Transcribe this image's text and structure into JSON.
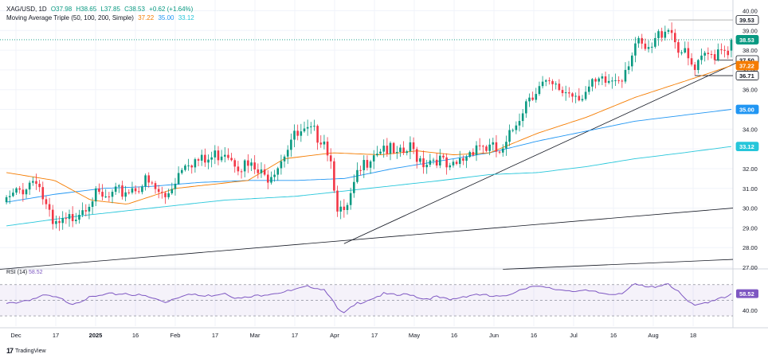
{
  "header": {
    "symbol": "XAG/USD, 1D",
    "open": "O37.98",
    "high": "H38.65",
    "low": "L37.85",
    "close": "C38.53",
    "change": "+0.62 (+1.64%)",
    "ma_label": "Moving Average Triple (50, 100, 200, Simple)",
    "ma50": "37.22",
    "ma100": "35.00",
    "ma200": "33.12"
  },
  "rsi_header": {
    "label": "RSI (14)",
    "value": "58.52"
  },
  "brand": {
    "logo": "17",
    "name": "TradingView"
  },
  "colors": {
    "up": "#089981",
    "down": "#f23645",
    "ma50": "#f57c00",
    "ma100": "#2196f3",
    "ma200": "#26c6da",
    "rsi": "#7e57c2",
    "trend": "#131722"
  },
  "chart_data": {
    "type": "candlestick",
    "x_labels": [
      "Dec",
      "17",
      "2025",
      "16",
      "Feb",
      "17",
      "Mar",
      "17",
      "Apr",
      "17",
      "May",
      "16",
      "Jun",
      "16",
      "Jul",
      "16",
      "Aug",
      "18"
    ],
    "y_ticks": [
      "40.00",
      "39.00",
      "38.00",
      "37.00",
      "36.00",
      "35.00",
      "34.00",
      "33.00",
      "32.00",
      "31.00",
      "30.00",
      "29.00",
      "28.00",
      "27.00"
    ],
    "ylim": [
      27,
      40.3
    ],
    "price_labels": [
      {
        "value": 39.53,
        "text": "39.53",
        "style": "outline"
      },
      {
        "value": 38.53,
        "text": "38.53",
        "style": "up"
      },
      {
        "value": 37.5,
        "text": "37.50",
        "style": "outline"
      },
      {
        "value": 37.22,
        "text": "37.22",
        "style": "ma50"
      },
      {
        "value": 36.71,
        "text": "36.71",
        "style": "outline"
      },
      {
        "value": 35.0,
        "text": "35.00",
        "style": "ma100"
      },
      {
        "value": 33.12,
        "text": "33.12",
        "style": "ma200"
      }
    ],
    "ma200_anchors": [
      [
        0,
        29.1
      ],
      [
        30,
        29.6
      ],
      [
        60,
        30.0
      ],
      [
        90,
        30.4
      ],
      [
        120,
        30.6
      ],
      [
        150,
        31.0
      ],
      [
        180,
        31.4
      ],
      [
        200,
        31.7
      ],
      [
        220,
        31.8
      ],
      [
        240,
        32.1
      ],
      [
        260,
        32.5
      ],
      [
        280,
        32.8
      ],
      [
        300,
        33.12
      ]
    ],
    "ma100_anchors": [
      [
        0,
        30.3
      ],
      [
        20,
        30.7
      ],
      [
        40,
        31.0
      ],
      [
        60,
        31.1
      ],
      [
        80,
        31.3
      ],
      [
        100,
        31.4
      ],
      [
        120,
        31.4
      ],
      [
        140,
        31.5
      ],
      [
        160,
        32.0
      ],
      [
        180,
        32.4
      ],
      [
        200,
        32.8
      ],
      [
        220,
        33.4
      ],
      [
        240,
        33.9
      ],
      [
        260,
        34.4
      ],
      [
        280,
        34.7
      ],
      [
        300,
        35.0
      ]
    ],
    "ma50_anchors": [
      [
        0,
        31.8
      ],
      [
        20,
        31.4
      ],
      [
        35,
        30.4
      ],
      [
        50,
        30.2
      ],
      [
        70,
        31.0
      ],
      [
        85,
        31.2
      ],
      [
        100,
        31.4
      ],
      [
        115,
        32.5
      ],
      [
        135,
        32.8
      ],
      [
        155,
        32.7
      ],
      [
        170,
        32.9
      ],
      [
        185,
        32.7
      ],
      [
        200,
        32.8
      ],
      [
        220,
        33.8
      ],
      [
        240,
        34.6
      ],
      [
        260,
        35.6
      ],
      [
        275,
        36.2
      ],
      [
        290,
        36.8
      ],
      [
        300,
        37.22
      ]
    ],
    "close_anchors": [
      [
        0,
        30.3
      ],
      [
        5,
        31.0
      ],
      [
        9,
        31.6
      ],
      [
        12,
        30.0
      ],
      [
        14,
        29.0
      ],
      [
        18,
        29.2
      ],
      [
        21,
        29.8
      ],
      [
        26,
        30.6
      ],
      [
        30,
        30.4
      ],
      [
        36,
        30.9
      ],
      [
        42,
        31.3
      ],
      [
        48,
        30.5
      ],
      [
        54,
        32.5
      ],
      [
        60,
        32.3
      ],
      [
        66,
        33.0
      ],
      [
        70,
        32.3
      ],
      [
        74,
        32.0
      ],
      [
        78,
        31.5
      ],
      [
        82,
        32.3
      ],
      [
        86,
        33.5
      ],
      [
        92,
        33.8
      ],
      [
        96,
        33.6
      ],
      [
        98,
        32.4
      ],
      [
        100,
        30.2
      ],
      [
        102,
        29.5
      ],
      [
        106,
        31.5
      ],
      [
        110,
        32.8
      ],
      [
        114,
        33.2
      ],
      [
        118,
        32.5
      ],
      [
        122,
        33.0
      ],
      [
        126,
        32.4
      ],
      [
        130,
        32.6
      ],
      [
        134,
        31.8
      ],
      [
        138,
        32.5
      ],
      [
        142,
        33.3
      ],
      [
        146,
        33.0
      ],
      [
        150,
        32.7
      ],
      [
        154,
        34.4
      ],
      [
        158,
        35.8
      ],
      [
        162,
        36.2
      ],
      [
        166,
        36.0
      ],
      [
        170,
        35.9
      ],
      [
        174,
        35.8
      ],
      [
        178,
        36.2
      ],
      [
        182,
        36.4
      ],
      [
        186,
        36.8
      ],
      [
        190,
        38.3
      ],
      [
        194,
        37.8
      ],
      [
        198,
        39.0
      ],
      [
        200,
        39.3
      ],
      [
        203,
        38.2
      ],
      [
        206,
        37.4
      ],
      [
        208,
        36.9
      ],
      [
        211,
        37.6
      ],
      [
        214,
        37.9
      ],
      [
        216,
        38.3
      ],
      [
        218,
        37.98
      ],
      [
        219,
        38.53
      ]
    ],
    "uptrend_line": [
      [
        28.2,
        "apr-low"
      ],
      [
        37.5,
        "aug-right"
      ]
    ],
    "support_line": {
      "start_value": 36.71
    },
    "long_line": {
      "start_value": 26.9,
      "end_value": 30.0
    },
    "rsi": {
      "ylim": [
        25,
        80
      ],
      "levels": [
        70,
        50,
        30
      ],
      "tick": "40.00",
      "last": 58.52,
      "anchors": [
        [
          0,
          45
        ],
        [
          8,
          52
        ],
        [
          12,
          56
        ],
        [
          16,
          52
        ],
        [
          20,
          46
        ],
        [
          24,
          52
        ],
        [
          30,
          57
        ],
        [
          36,
          59
        ],
        [
          42,
          55
        ],
        [
          48,
          48
        ],
        [
          54,
          58
        ],
        [
          60,
          55
        ],
        [
          66,
          60
        ],
        [
          70,
          52
        ],
        [
          74,
          54
        ],
        [
          78,
          58
        ],
        [
          82,
          60
        ],
        [
          86,
          62
        ],
        [
          92,
          68
        ],
        [
          96,
          64
        ],
        [
          98,
          55
        ],
        [
          100,
          38
        ],
        [
          102,
          33
        ],
        [
          106,
          46
        ],
        [
          110,
          52
        ],
        [
          114,
          58
        ],
        [
          118,
          56
        ],
        [
          122,
          58
        ],
        [
          126,
          52
        ],
        [
          130,
          54
        ],
        [
          134,
          50
        ],
        [
          138,
          55
        ],
        [
          142,
          58
        ],
        [
          146,
          55
        ],
        [
          150,
          54
        ],
        [
          154,
          62
        ],
        [
          158,
          68
        ],
        [
          162,
          66
        ],
        [
          166,
          64
        ],
        [
          170,
          63
        ],
        [
          174,
          62
        ],
        [
          178,
          60
        ],
        [
          182,
          58
        ],
        [
          186,
          60
        ],
        [
          190,
          70
        ],
        [
          194,
          66
        ],
        [
          198,
          70
        ],
        [
          200,
          72
        ],
        [
          203,
          60
        ],
        [
          206,
          48
        ],
        [
          208,
          42
        ],
        [
          211,
          47
        ],
        [
          214,
          51
        ],
        [
          216,
          55
        ],
        [
          218,
          54
        ],
        [
          219,
          58.5
        ]
      ]
    }
  }
}
